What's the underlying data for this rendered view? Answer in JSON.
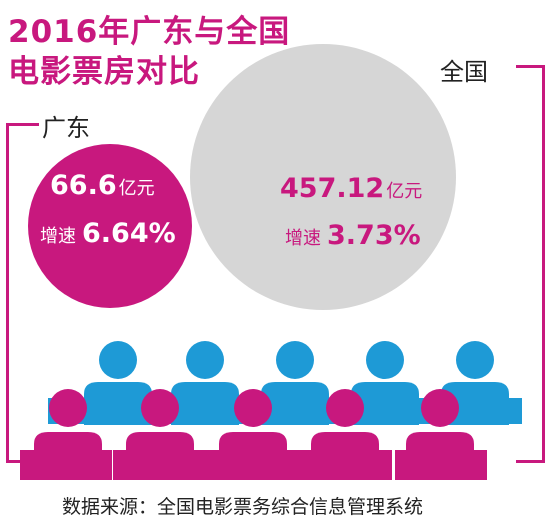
{
  "title_line1": "2016年广东与全国",
  "title_line2": "电影票房对比",
  "colors": {
    "accent": "#c8187e",
    "blue": "#1e9ad6",
    "gray": "#d6d6d6"
  },
  "chart_data": {
    "type": "bubble",
    "title": "2016年广东与全国电影票房对比",
    "unit": "亿元",
    "series": [
      {
        "name": "广东",
        "value": 66.6,
        "value_text": "66.6",
        "growth_label": "增速",
        "growth_text": "6.64%"
      },
      {
        "name": "全国",
        "value": 457.12,
        "value_text": "457.12",
        "growth_label": "增速",
        "growth_text": "3.73%"
      }
    ]
  },
  "source": "数据来源：全国电影票务综合信息管理系统"
}
